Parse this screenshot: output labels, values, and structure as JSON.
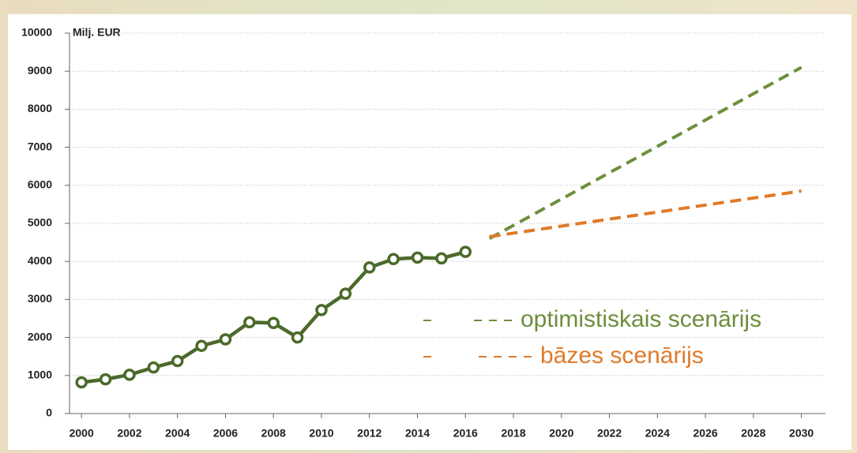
{
  "chart_data": {
    "type": "line",
    "ylabel": "Milj. EUR",
    "xlim": [
      1999.5,
      2031
    ],
    "xticks": [
      2000,
      2002,
      2004,
      2006,
      2008,
      2010,
      2012,
      2014,
      2016,
      2018,
      2020,
      2022,
      2024,
      2026,
      2028,
      2030
    ],
    "ylim": [
      0,
      10000
    ],
    "yticks": [
      0,
      1000,
      2000,
      3000,
      4000,
      5000,
      6000,
      7000,
      8000,
      9000,
      10000
    ],
    "grid": true,
    "series": [
      {
        "color": "#4b6a2b",
        "style": "solid",
        "markers": true,
        "x": [
          2000,
          2001,
          2002,
          2003,
          2004,
          2005,
          2006,
          2007,
          2008,
          2009,
          2010,
          2011,
          2012,
          2013,
          2014,
          2015,
          2016
        ],
        "values": [
          820,
          900,
          1020,
          1210,
          1380,
          1780,
          1950,
          2400,
          2380,
          2000,
          2720,
          3150,
          3840,
          4060,
          4100,
          4080,
          4250
        ]
      },
      {
        "name": "optimistiskais scenārijs",
        "color": "#6e8e3c",
        "style": "dashed",
        "markers": false,
        "x": [
          2017,
          2030
        ],
        "values": [
          4600,
          9100
        ]
      },
      {
        "name": "bāzes scenārijs",
        "color": "#e07a28",
        "style": "dashed",
        "markers": false,
        "x": [
          2017,
          2030
        ],
        "values": [
          4650,
          5850
        ]
      }
    ]
  }
}
